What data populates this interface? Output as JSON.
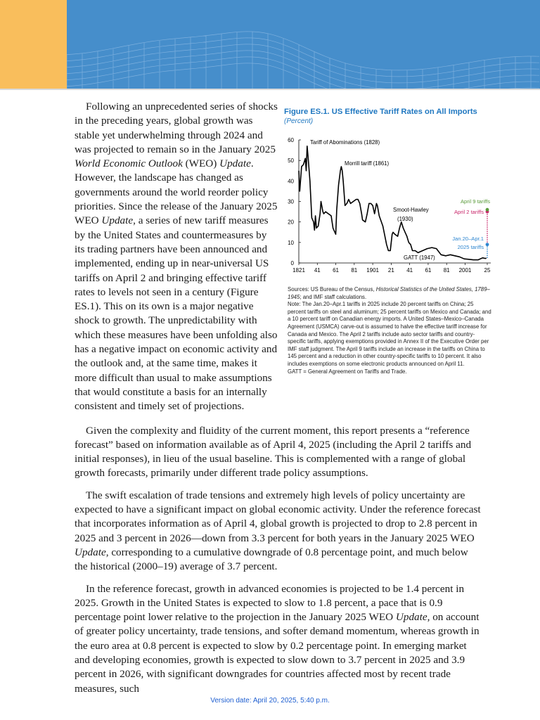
{
  "colors": {
    "banner_orange": "#F9BE5C",
    "banner_blue": "#468ECB",
    "figure_title": "#1F77C0",
    "april9": "#5A9A3A",
    "april2": "#C8266A",
    "jan_apr": "#2E86D0"
  },
  "paragraphs": [
    [
      {
        "t": "Following an unprecedented series of shocks in the preceding years, global growth was stable yet underwhelming through 2024 and was projected to remain so in the January 2025 "
      },
      {
        "t": "World Economic Outlook",
        "i": true
      },
      {
        "t": " (WEO) "
      },
      {
        "t": "Update",
        "i": true
      },
      {
        "t": ". However, the landscape has changed as governments around the world reorder policy priorities. Since the release of the January 2025 WEO "
      },
      {
        "t": "Update",
        "i": true
      },
      {
        "t": ", a series of new tariff measures by the United States and countermeasures by its trading partners have been announced and implemented, ending up in near-universal US tariffs on April 2 and bringing effective tariff rates to levels not seen in a century (Figure ES.1). This on its own is a major negative shock to growth. The unpredictability with which these measures have been unfolding also has a negative impact on economic activity and the outlook and, at the same time, makes it more difficult than usual to make assumptions that would constitute a basis for an internally consistent and timely set of projections."
      }
    ],
    [
      {
        "t": "Given the complexity and fluidity of the current moment, this report presents a “reference forecast” based on information available as of April 4, 2025 (including the April 2 tariffs and initial responses), in lieu of the usual baseline. This is complemented with a range of global growth forecasts, primarily under different trade policy assumptions."
      }
    ],
    [
      {
        "t": "The swift escalation of trade tensions and extremely high levels of policy uncertainty are expected to have a significant impact on global economic activity. Under the reference forecast that incorporates information as of April 4, global growth is projected to drop to 2.8 percent in 2025 and 3 percent in 2026—down from 3.3 percent for both years in the January 2025 WEO "
      },
      {
        "t": "Update",
        "i": true
      },
      {
        "t": ", corresponding to a cumulative downgrade of 0.8 percentage point, and much below the historical (2000–19) average of 3.7 percent."
      }
    ],
    [
      {
        "t": "In the reference forecast, growth in advanced economies is projected to be 1.4 percent in 2025. Growth in the United States is expected to slow to 1.8 percent, a pace that is 0.9 percentage point lower relative to the projection in the January 2025 WEO "
      },
      {
        "t": "Update",
        "i": true
      },
      {
        "t": ", on account of greater policy uncertainty, trade tensions, and softer demand momentum, whereas growth in the euro area at 0.8 percent is expected to slow by 0.2 percentage point. In emerging market and developing economies, growth is expected to slow down to 3.7 percent in 2025 and 3.9 percent in 2026, with significant downgrades for countries affected most by recent trade measures, such"
      }
    ]
  ],
  "figure": {
    "title": "Figure ES.1.  US Effective Tariff Rates on All Imports",
    "subtitle": "(Percent)",
    "sources_label": "Sources: US Bureau of the Census, ",
    "sources_italic": "Historical Statistics of the United States, 1789–1945",
    "sources_rest": "; and IMF staff calculations.",
    "note": "Note: The Jan.20–Apr.1 tariffs in 2025 include 20 percent tariffs on China; 25 percent tariffs on steel and aluminum; 25 percent tariffs on Mexico and Canada; and a 10 percent tariff on Canadian energy imports. A United States–Mexico–Canada Agreement (USMCA) carve-out is assumed to halve the effective tariff increase for Canada and Mexico. The April 2 tariffs include auto sector tariffs and country-specific tariffs, applying exemptions provided in Annex II of the Executive Order per IMF staff judgment. The April 9 tariffs include an increase in the tariffs on China to 145 percent and a reduction in other country-specific tariffs to 10 percent. It also includes exemptions on some electronic products announced on April 11.",
    "gatt_def": "GATT = General Agreement on Tariffs and Trade."
  },
  "chart_data": {
    "type": "line",
    "title": "Figure ES.1.  US Effective Tariff Rates on All Imports",
    "subtitle": "(Percent)",
    "xlim": [
      1821,
      2025
    ],
    "ylim": [
      0,
      60
    ],
    "yticks": [
      0,
      10,
      20,
      30,
      40,
      50,
      60
    ],
    "xticks": [
      1821,
      1841,
      1861,
      1881,
      1901,
      1921,
      1941,
      1961,
      1981,
      2001,
      2025
    ],
    "xtick_labels": [
      "1821",
      "41",
      "61",
      "81",
      "1901",
      "21",
      "41",
      "61",
      "81",
      "2001",
      "25"
    ],
    "grid": false,
    "series": [
      {
        "x": [
          1821,
          1822,
          1824,
          1826,
          1828,
          1829,
          1830,
          1831,
          1833,
          1835,
          1837,
          1838,
          1839,
          1840,
          1842,
          1844,
          1845,
          1847,
          1848,
          1850,
          1853,
          1856,
          1858,
          1861,
          1862,
          1864,
          1866,
          1867,
          1868,
          1869,
          1871,
          1873,
          1875,
          1877,
          1880,
          1883,
          1885,
          1887,
          1889,
          1890,
          1893,
          1895,
          1897,
          1899,
          1901,
          1903,
          1905,
          1906,
          1908,
          1912,
          1916,
          1918,
          1920,
          1922,
          1923,
          1925,
          1928,
          1930,
          1932,
          1934,
          1936,
          1938,
          1940,
          1942,
          1944,
          1947,
          1950,
          1955,
          1960,
          1965,
          1970,
          1975,
          1980,
          1985,
          1990,
          1995,
          2000,
          2005,
          2010,
          2015,
          2020,
          2023,
          2024
        ],
        "y": [
          45,
          35,
          47,
          48,
          51,
          45,
          57,
          52,
          40,
          22,
          20,
          16,
          23,
          17,
          18,
          24,
          30,
          25,
          24,
          25,
          24,
          23,
          17,
          14,
          26,
          38,
          45,
          47,
          45,
          40,
          28,
          29,
          31,
          29,
          30,
          31,
          31,
          29,
          24,
          21,
          20,
          24,
          29,
          29,
          28,
          24,
          29,
          28,
          23,
          18,
          9,
          6,
          6,
          14,
          15,
          14,
          13,
          17,
          20,
          17,
          15,
          13,
          10,
          9,
          6,
          6,
          5,
          6,
          7,
          7.5,
          7,
          4,
          3.5,
          4,
          3.5,
          3,
          2,
          1.8,
          1.5,
          1.5,
          2.5,
          2.2,
          2.4
        ]
      }
    ],
    "markers": [
      {
        "label": "Jan.20–Apr.1 2025 tariffs",
        "label_lines": [
          "Jan.20–Apr.1",
          "2025 tariffs"
        ],
        "x": 2025,
        "y": 9,
        "color": "#2E86D0"
      },
      {
        "label": "April 2 tariffs",
        "label_lines": [
          "April 2 tariffs"
        ],
        "x": 2025,
        "y": 25,
        "color": "#C8266A"
      },
      {
        "label": "April 9 tariffs",
        "label_lines": [
          "April 9 tariffs"
        ],
        "x": 2025,
        "y": 26,
        "color": "#5A9A3A"
      }
    ],
    "annotations": [
      {
        "text": "Tariff of Abominations (1828)",
        "x": 1830,
        "y": 58
      },
      {
        "text": "Morrill tariff (1861)",
        "x": 1864,
        "y": 48
      },
      {
        "text": "Smoot-Hawley",
        "x": 1933,
        "y": 25.5
      },
      {
        "text": "(1930)",
        "x": 1935,
        "y": 21
      },
      {
        "text": "GATT (1947)",
        "x": 1941,
        "y": 2
      }
    ]
  },
  "footer": {
    "version": "Version date: April 20, 2025, 5:40 p.m."
  }
}
